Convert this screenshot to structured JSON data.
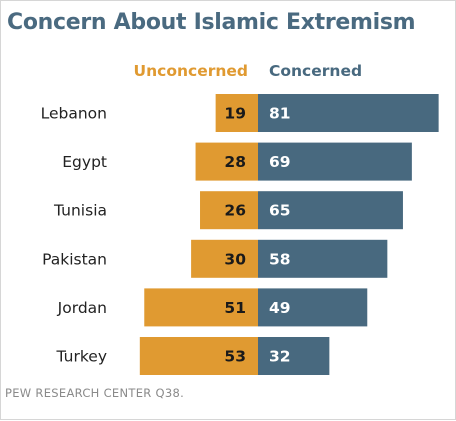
{
  "title": "Concern About Islamic Extremism",
  "legend": {
    "left": "Unconcerned",
    "right": "Concerned"
  },
  "colors": {
    "unconcerned": "#e09a31",
    "concerned": "#48697f",
    "title": "#4a6a80"
  },
  "source": "PEW RESEARCH CENTER Q38.",
  "chart_data": {
    "type": "bar",
    "orientation": "horizontal-diverging",
    "title": "Concern About Islamic Extremism",
    "categories": [
      "Lebanon",
      "Egypt",
      "Tunisia",
      "Pakistan",
      "Jordan",
      "Turkey"
    ],
    "series": [
      {
        "name": "Unconcerned",
        "values": [
          19,
          28,
          26,
          30,
          51,
          53
        ]
      },
      {
        "name": "Concerned",
        "values": [
          81,
          69,
          65,
          58,
          49,
          32
        ]
      }
    ],
    "legend": "top",
    "grid": false,
    "data_labels": true
  }
}
